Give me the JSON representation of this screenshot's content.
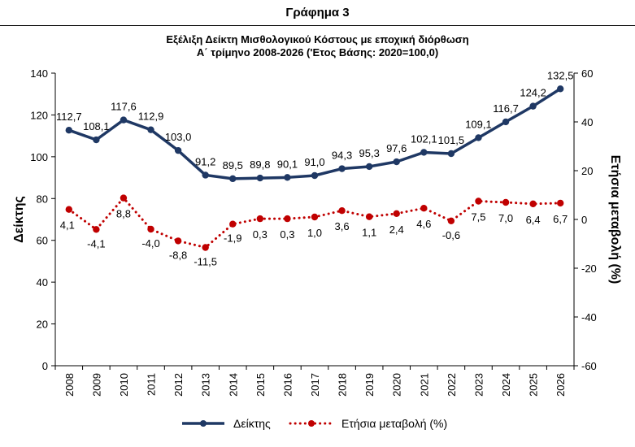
{
  "header": {
    "title": "Γράφημα 3"
  },
  "chart_data": {
    "type": "line",
    "title": "Εξέλιξη Δείκτη Μισθολογικού Κόστους με εποχική διόρθωση",
    "subtitle": "Α΄ τρίμηνο 2008-2026 ('Ετος Βάσης: 2020=100,0)",
    "x": [
      "2008",
      "2009",
      "2010",
      "2011",
      "2012",
      "2013",
      "2014",
      "2015",
      "2016",
      "2017",
      "2018",
      "2019",
      "2020",
      "2021",
      "2022",
      "2023",
      "2024",
      "2025",
      "2026"
    ],
    "ylabel": "Δείκτης",
    "y2label": "Ετήσια μεταβολή (%)",
    "ylim": [
      0,
      140
    ],
    "y2lim": [
      -60,
      60
    ],
    "yticks": [
      "0",
      "20",
      "40",
      "60",
      "80",
      "100",
      "120",
      "140"
    ],
    "y2ticks": [
      "-60",
      "-40",
      "-20",
      "0",
      "20",
      "40",
      "60"
    ],
    "series": [
      {
        "name": "Δείκτης",
        "axis": "left",
        "color": "#1f3864",
        "style": "solid",
        "values": [
          112.7,
          108.1,
          117.6,
          112.9,
          103.0,
          91.2,
          89.5,
          89.8,
          90.1,
          91.0,
          94.3,
          95.3,
          97.6,
          102.1,
          101.5,
          109.1,
          116.7,
          124.2,
          132.5
        ],
        "labels": [
          "112,7",
          "108,1",
          "117,6",
          "112,9",
          "103,0",
          "91,2",
          "89,5",
          "89,8",
          "90,1",
          "91,0",
          "94,3",
          "95,3",
          "97,6",
          "102,1",
          "101,5",
          "109,1",
          "116,7",
          "124,2",
          "132,5"
        ]
      },
      {
        "name": "Ετήσια μεταβολή (%)",
        "axis": "right",
        "color": "#c00000",
        "style": "dotted",
        "values": [
          4.1,
          -4.1,
          8.8,
          -4.0,
          -8.8,
          -11.5,
          -1.9,
          0.3,
          0.3,
          1.0,
          3.6,
          1.1,
          2.4,
          4.6,
          -0.6,
          7.5,
          7.0,
          6.4,
          6.7
        ],
        "labels": [
          "4,1",
          "-4,1",
          "8,8",
          "-4,0",
          "-8,8",
          "-11,5",
          "-1,9",
          "0,3",
          "0,3",
          "1,0",
          "3,6",
          "1,1",
          "2,4",
          "4,6",
          "-0,6",
          "7,5",
          "7,0",
          "6,4",
          "6,7"
        ]
      }
    ],
    "legend": {
      "position": "bottom",
      "entries": [
        "Δείκτης",
        "Ετήσια μεταβολή (%)"
      ]
    },
    "grid": false
  }
}
